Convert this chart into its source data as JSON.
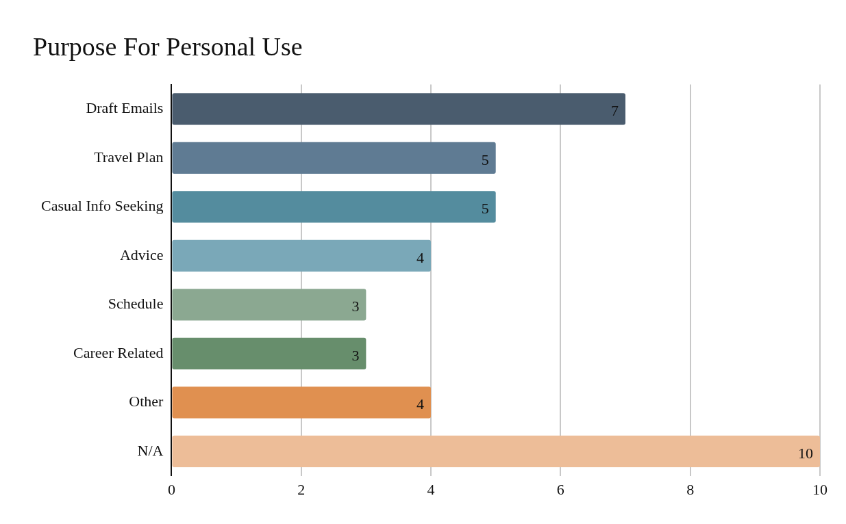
{
  "chart_data": {
    "type": "bar",
    "orientation": "horizontal",
    "title": "Purpose For Personal Use",
    "categories": [
      "Draft Emails",
      "Travel Plan",
      "Casual Info Seeking",
      "Advice",
      "Schedule",
      "Career Related",
      "Other",
      "N/A"
    ],
    "values": [
      7,
      5,
      5,
      4,
      3,
      3,
      4,
      10
    ],
    "colors": [
      "#4a5c6e",
      "#5f7b93",
      "#548c9e",
      "#7aa8b8",
      "#8ba891",
      "#678e6c",
      "#e09050",
      "#edbd98"
    ],
    "xlim": [
      0,
      10
    ],
    "xticks": [
      0,
      2,
      4,
      6,
      8,
      10
    ],
    "grid": "x",
    "data_labels": true
  }
}
